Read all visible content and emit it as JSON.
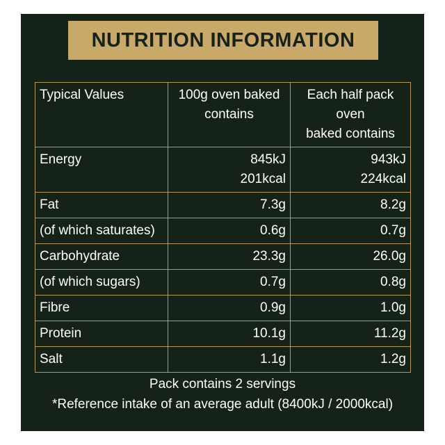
{
  "title": "NUTRITION INFORMATION",
  "table": {
    "headers": [
      "Typical Values",
      "100g oven baked contains",
      "Each half pack oven baked contains"
    ],
    "header_lines": {
      "col2": [
        "100g oven baked",
        "contains"
      ],
      "col3": [
        "Each half pack oven",
        "baked contains"
      ]
    },
    "rows": [
      {
        "label": "Energy",
        "per100g": [
          "845kJ",
          "201kcal"
        ],
        "perHalfPack": [
          "943kJ",
          "224kcal"
        ]
      },
      {
        "label": "Fat",
        "per100g": [
          "7.3g"
        ],
        "perHalfPack": [
          "8.2g"
        ]
      },
      {
        "label": "(of which saturates)",
        "per100g": [
          "0.6g"
        ],
        "perHalfPack": [
          "0.7g"
        ]
      },
      {
        "label": "Carbohydrate",
        "per100g": [
          "23.3g"
        ],
        "perHalfPack": [
          "26.0g"
        ]
      },
      {
        "label": "(of which sugars)",
        "per100g": [
          "0.7g"
        ],
        "perHalfPack": [
          "0.8g"
        ]
      },
      {
        "label": "Fibre",
        "per100g": [
          "0.9g"
        ],
        "perHalfPack": [
          "1.0g"
        ]
      },
      {
        "label": "Protein",
        "per100g": [
          "10.1g"
        ],
        "perHalfPack": [
          "11.2g"
        ]
      },
      {
        "label": "Salt",
        "per100g": [
          "1.1g"
        ],
        "perHalfPack": [
          "1.2g"
        ]
      }
    ]
  },
  "footer": {
    "servings": "Pack contains 2 servings",
    "reference": "*Reference intake of an average adult (8400kJ / 2000kcal)"
  },
  "colors": {
    "background": "#152218",
    "accent_gold": "#c9a96a",
    "border": "#b89a5c",
    "text": "#ffffff"
  }
}
